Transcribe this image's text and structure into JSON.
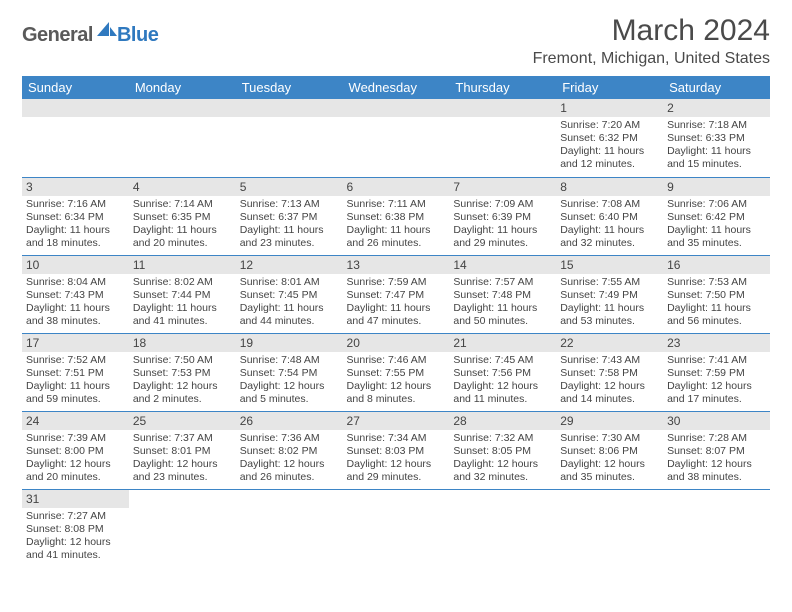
{
  "logo": {
    "main": "General",
    "sub": "Blue"
  },
  "title": "March 2024",
  "location": "Fremont, Michigan, United States",
  "colors": {
    "header_bg": "#3d85c6",
    "header_fg": "#ffffff",
    "daynum_bg": "#e6e6e6",
    "cell_border": "#3d85c6",
    "text": "#444444",
    "logo_sub": "#2f79bf"
  },
  "day_headers": [
    "Sunday",
    "Monday",
    "Tuesday",
    "Wednesday",
    "Thursday",
    "Friday",
    "Saturday"
  ],
  "weeks": [
    [
      null,
      null,
      null,
      null,
      null,
      {
        "n": "1",
        "sr": "Sunrise: 7:20 AM",
        "ss": "Sunset: 6:32 PM",
        "d1": "Daylight: 11 hours",
        "d2": "and 12 minutes."
      },
      {
        "n": "2",
        "sr": "Sunrise: 7:18 AM",
        "ss": "Sunset: 6:33 PM",
        "d1": "Daylight: 11 hours",
        "d2": "and 15 minutes."
      }
    ],
    [
      {
        "n": "3",
        "sr": "Sunrise: 7:16 AM",
        "ss": "Sunset: 6:34 PM",
        "d1": "Daylight: 11 hours",
        "d2": "and 18 minutes."
      },
      {
        "n": "4",
        "sr": "Sunrise: 7:14 AM",
        "ss": "Sunset: 6:35 PM",
        "d1": "Daylight: 11 hours",
        "d2": "and 20 minutes."
      },
      {
        "n": "5",
        "sr": "Sunrise: 7:13 AM",
        "ss": "Sunset: 6:37 PM",
        "d1": "Daylight: 11 hours",
        "d2": "and 23 minutes."
      },
      {
        "n": "6",
        "sr": "Sunrise: 7:11 AM",
        "ss": "Sunset: 6:38 PM",
        "d1": "Daylight: 11 hours",
        "d2": "and 26 minutes."
      },
      {
        "n": "7",
        "sr": "Sunrise: 7:09 AM",
        "ss": "Sunset: 6:39 PM",
        "d1": "Daylight: 11 hours",
        "d2": "and 29 minutes."
      },
      {
        "n": "8",
        "sr": "Sunrise: 7:08 AM",
        "ss": "Sunset: 6:40 PM",
        "d1": "Daylight: 11 hours",
        "d2": "and 32 minutes."
      },
      {
        "n": "9",
        "sr": "Sunrise: 7:06 AM",
        "ss": "Sunset: 6:42 PM",
        "d1": "Daylight: 11 hours",
        "d2": "and 35 minutes."
      }
    ],
    [
      {
        "n": "10",
        "sr": "Sunrise: 8:04 AM",
        "ss": "Sunset: 7:43 PM",
        "d1": "Daylight: 11 hours",
        "d2": "and 38 minutes."
      },
      {
        "n": "11",
        "sr": "Sunrise: 8:02 AM",
        "ss": "Sunset: 7:44 PM",
        "d1": "Daylight: 11 hours",
        "d2": "and 41 minutes."
      },
      {
        "n": "12",
        "sr": "Sunrise: 8:01 AM",
        "ss": "Sunset: 7:45 PM",
        "d1": "Daylight: 11 hours",
        "d2": "and 44 minutes."
      },
      {
        "n": "13",
        "sr": "Sunrise: 7:59 AM",
        "ss": "Sunset: 7:47 PM",
        "d1": "Daylight: 11 hours",
        "d2": "and 47 minutes."
      },
      {
        "n": "14",
        "sr": "Sunrise: 7:57 AM",
        "ss": "Sunset: 7:48 PM",
        "d1": "Daylight: 11 hours",
        "d2": "and 50 minutes."
      },
      {
        "n": "15",
        "sr": "Sunrise: 7:55 AM",
        "ss": "Sunset: 7:49 PM",
        "d1": "Daylight: 11 hours",
        "d2": "and 53 minutes."
      },
      {
        "n": "16",
        "sr": "Sunrise: 7:53 AM",
        "ss": "Sunset: 7:50 PM",
        "d1": "Daylight: 11 hours",
        "d2": "and 56 minutes."
      }
    ],
    [
      {
        "n": "17",
        "sr": "Sunrise: 7:52 AM",
        "ss": "Sunset: 7:51 PM",
        "d1": "Daylight: 11 hours",
        "d2": "and 59 minutes."
      },
      {
        "n": "18",
        "sr": "Sunrise: 7:50 AM",
        "ss": "Sunset: 7:53 PM",
        "d1": "Daylight: 12 hours",
        "d2": "and 2 minutes."
      },
      {
        "n": "19",
        "sr": "Sunrise: 7:48 AM",
        "ss": "Sunset: 7:54 PM",
        "d1": "Daylight: 12 hours",
        "d2": "and 5 minutes."
      },
      {
        "n": "20",
        "sr": "Sunrise: 7:46 AM",
        "ss": "Sunset: 7:55 PM",
        "d1": "Daylight: 12 hours",
        "d2": "and 8 minutes."
      },
      {
        "n": "21",
        "sr": "Sunrise: 7:45 AM",
        "ss": "Sunset: 7:56 PM",
        "d1": "Daylight: 12 hours",
        "d2": "and 11 minutes."
      },
      {
        "n": "22",
        "sr": "Sunrise: 7:43 AM",
        "ss": "Sunset: 7:58 PM",
        "d1": "Daylight: 12 hours",
        "d2": "and 14 minutes."
      },
      {
        "n": "23",
        "sr": "Sunrise: 7:41 AM",
        "ss": "Sunset: 7:59 PM",
        "d1": "Daylight: 12 hours",
        "d2": "and 17 minutes."
      }
    ],
    [
      {
        "n": "24",
        "sr": "Sunrise: 7:39 AM",
        "ss": "Sunset: 8:00 PM",
        "d1": "Daylight: 12 hours",
        "d2": "and 20 minutes."
      },
      {
        "n": "25",
        "sr": "Sunrise: 7:37 AM",
        "ss": "Sunset: 8:01 PM",
        "d1": "Daylight: 12 hours",
        "d2": "and 23 minutes."
      },
      {
        "n": "26",
        "sr": "Sunrise: 7:36 AM",
        "ss": "Sunset: 8:02 PM",
        "d1": "Daylight: 12 hours",
        "d2": "and 26 minutes."
      },
      {
        "n": "27",
        "sr": "Sunrise: 7:34 AM",
        "ss": "Sunset: 8:03 PM",
        "d1": "Daylight: 12 hours",
        "d2": "and 29 minutes."
      },
      {
        "n": "28",
        "sr": "Sunrise: 7:32 AM",
        "ss": "Sunset: 8:05 PM",
        "d1": "Daylight: 12 hours",
        "d2": "and 32 minutes."
      },
      {
        "n": "29",
        "sr": "Sunrise: 7:30 AM",
        "ss": "Sunset: 8:06 PM",
        "d1": "Daylight: 12 hours",
        "d2": "and 35 minutes."
      },
      {
        "n": "30",
        "sr": "Sunrise: 7:28 AM",
        "ss": "Sunset: 8:07 PM",
        "d1": "Daylight: 12 hours",
        "d2": "and 38 minutes."
      }
    ],
    [
      {
        "n": "31",
        "sr": "Sunrise: 7:27 AM",
        "ss": "Sunset: 8:08 PM",
        "d1": "Daylight: 12 hours",
        "d2": "and 41 minutes."
      },
      null,
      null,
      null,
      null,
      null,
      null
    ]
  ]
}
